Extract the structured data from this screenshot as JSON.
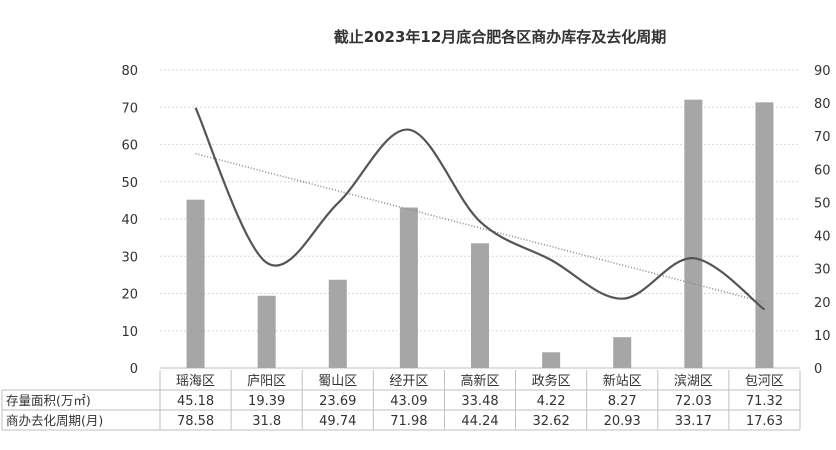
{
  "chart_data": {
    "type": "bar",
    "title": "截止2023年12月底合肥各区商办库存及去化周期",
    "categories": [
      "瑶海区",
      "庐阳区",
      "蜀山区",
      "经开区",
      "高新区",
      "政务区",
      "新站区",
      "滨湖区",
      "包河区"
    ],
    "ylim_left": [
      0,
      80
    ],
    "yticks_left": [
      "0",
      "10",
      "20",
      "30",
      "40",
      "50",
      "60",
      "70",
      "80"
    ],
    "ylim_right": [
      0,
      90
    ],
    "yticks_right": [
      "0",
      "10",
      "20",
      "30",
      "40",
      "50",
      "60",
      "70",
      "80",
      "90"
    ],
    "grid": true,
    "series": [
      {
        "name": "存量面积(万㎡)",
        "type": "bar",
        "axis": "left",
        "color": "#a6a6a6",
        "values": [
          45.18,
          19.39,
          23.69,
          43.09,
          33.48,
          4.22,
          8.27,
          72.03,
          71.32
        ],
        "display": [
          "45.18",
          "19.39",
          "23.69",
          "43.09",
          "33.48",
          "4.22",
          "8.27",
          "72.03",
          "71.32"
        ]
      },
      {
        "name": "商办去化周期(月)",
        "type": "line",
        "axis": "right",
        "color": "#555555",
        "values": [
          78.58,
          31.8,
          49.74,
          71.98,
          44.24,
          32.62,
          20.93,
          33.17,
          17.63
        ],
        "display": [
          "78.58",
          "31.8",
          "49.74",
          "71.98",
          "44.24",
          "32.62",
          "20.93",
          "33.17",
          "17.63"
        ]
      }
    ],
    "trendline": {
      "color": "#8a8a8a"
    }
  }
}
